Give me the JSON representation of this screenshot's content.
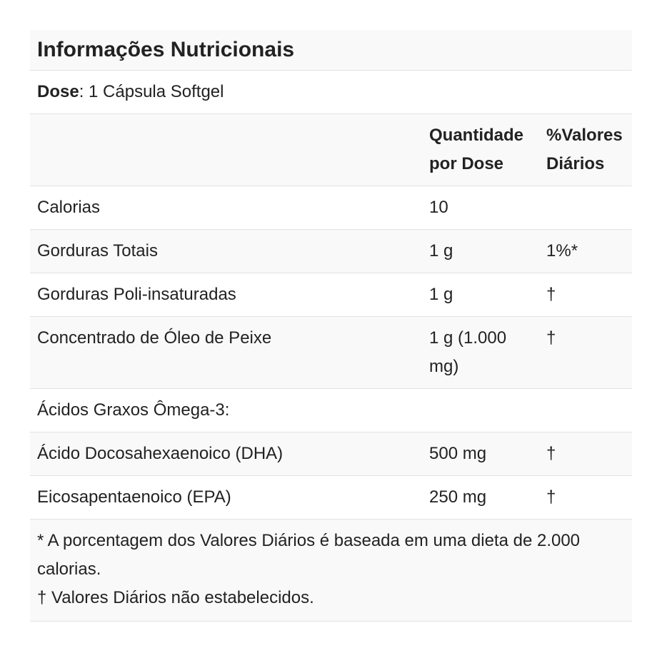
{
  "title": "Informações Nutricionais",
  "dose": {
    "label": "Dose",
    "value": ": 1 Cápsula Softgel"
  },
  "table": {
    "header": [
      null,
      "Quantidade por Dose",
      "%Valores Diários"
    ],
    "rows": [
      [
        "Calorias",
        "10",
        null
      ],
      [
        "Gorduras Totais",
        "1 g",
        "1%*"
      ],
      [
        "Gorduras Poli-insaturadas",
        "1 g",
        "†"
      ],
      [
        "Concentrado de Óleo de Peixe",
        "1 g (1.000 mg)",
        "†"
      ],
      [
        "Ácidos Graxos Ômega-3:",
        null,
        null
      ],
      [
        "Ácido Docosahexaenoico (DHA)",
        "500 mg",
        "†"
      ],
      [
        "Eicosapentaenoico (EPA)",
        "250 mg",
        "†"
      ]
    ]
  },
  "footnotes": [
    "* A porcentagem dos Valores Diários é baseada em uma dieta de 2.000 calorias.",
    "† Valores Diários não estabelecidos."
  ]
}
